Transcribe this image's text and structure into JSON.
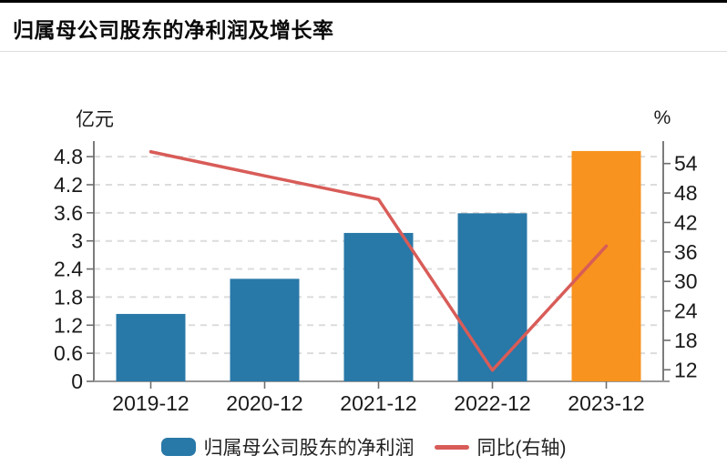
{
  "header": {
    "title": "归属母公司股东的净利润及增长率"
  },
  "chart_data": {
    "type": "bar",
    "title": "归属母公司股东的净利润及增长率",
    "categories": [
      "2019-12",
      "2020-12",
      "2021-12",
      "2022-12",
      "2023-12"
    ],
    "series": [
      {
        "name": "归属母公司股东的净利润",
        "type": "bar",
        "axis": "left",
        "unit": "亿元",
        "values": [
          1.44,
          2.19,
          3.17,
          3.59,
          4.92
        ],
        "bar_colors": [
          "#2878a8",
          "#2878a8",
          "#2878a8",
          "#2878a8",
          "#f7931e"
        ],
        "color": "#2878a8"
      },
      {
        "name": "同比(右轴)",
        "type": "line",
        "axis": "right",
        "unit": "%",
        "values": [
          56.4,
          51.5,
          46.7,
          11.9,
          37.2
        ],
        "color": "#d85c58"
      }
    ],
    "left_axis": {
      "unit": "亿元",
      "min": 0,
      "max": 4.8,
      "step": 0.6,
      "ticks": [
        {
          "value": 0,
          "label": "0"
        },
        {
          "value": 0.6,
          "label": "0.6"
        },
        {
          "value": 1.2,
          "label": "1.2"
        },
        {
          "value": 1.8,
          "label": "1.8"
        },
        {
          "value": 2.4,
          "label": "2.4"
        },
        {
          "value": 3,
          "label": "3"
        },
        {
          "value": 3.6,
          "label": "3.6"
        },
        {
          "value": 4.2,
          "label": "4.2"
        },
        {
          "value": 4.8,
          "label": "4.8"
        }
      ]
    },
    "right_axis": {
      "unit": "%",
      "min": 12,
      "max": 54,
      "step": 6,
      "ticks": [
        {
          "value": 12,
          "label": "12"
        },
        {
          "value": 18,
          "label": "18"
        },
        {
          "value": 24,
          "label": "24"
        },
        {
          "value": 30,
          "label": "30"
        },
        {
          "value": 36,
          "label": "36"
        },
        {
          "value": 42,
          "label": "42"
        },
        {
          "value": 48,
          "label": "48"
        },
        {
          "value": 54,
          "label": "54"
        }
      ]
    },
    "grid": "horizontal dashed",
    "legend_position": "bottom"
  },
  "legend": {
    "items": [
      {
        "label": "归属母公司股东的净利润",
        "marker": "bar",
        "color": "#2878a8"
      },
      {
        "label": "同比(右轴)",
        "marker": "line",
        "color": "#d85c58"
      }
    ]
  },
  "colors": {
    "bar_blue": "#2878a8",
    "bar_orange": "#f7931e",
    "line_red": "#d85c58",
    "gridline": "#dcdcdc",
    "axis": "#6e6e6e",
    "baseline": "#999999",
    "text": "#1a1a1a"
  }
}
